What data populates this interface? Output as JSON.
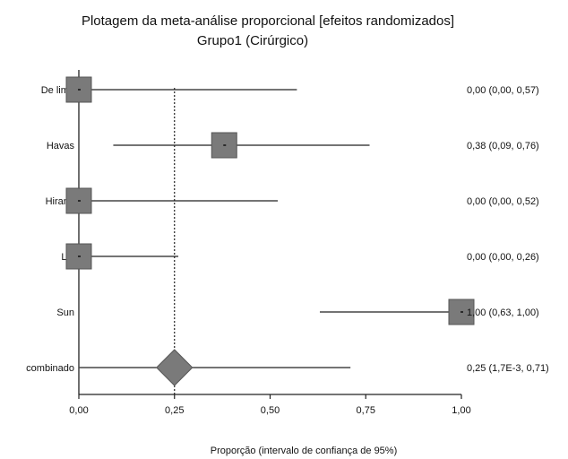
{
  "chart_data": {
    "type": "forest",
    "title": "Plotagem da meta-análise proporcional [efeitos randomizados]",
    "subtitle": "Grupo1 (Cirúrgico)",
    "xlabel": "Proporção (intervalo de confiança de 95%)",
    "xlim": [
      0,
      1
    ],
    "x_ticks": [
      0,
      0.25,
      0.5,
      0.75,
      1
    ],
    "x_tick_labels": [
      "0,00",
      "0,25",
      "0,50",
      "0,75",
      "1,00"
    ],
    "pooled_reference_line": 0.25,
    "studies": [
      {
        "name": "De lima",
        "estimate": 0.0,
        "ci_low": 0.0,
        "ci_high": 0.57,
        "label": "0,00 (0,00, 0,57)"
      },
      {
        "name": "Havas",
        "estimate": 0.38,
        "ci_low": 0.09,
        "ci_high": 0.76,
        "label": "0,38 (0,09, 0,76)"
      },
      {
        "name": "Hirano",
        "estimate": 0.0,
        "ci_low": 0.0,
        "ci_high": 0.52,
        "label": "0,00 (0,00, 0,52)"
      },
      {
        "name": "Lin",
        "estimate": 0.0,
        "ci_low": 0.0,
        "ci_high": 0.26,
        "label": "0,00 (0,00, 0,26)"
      },
      {
        "name": "Sun",
        "estimate": 1.0,
        "ci_low": 0.63,
        "ci_high": 1.0,
        "label": "1,00 (0,63, 1,00)"
      }
    ],
    "combined": {
      "name": "combinado",
      "estimate": 0.25,
      "ci_low": 0.0017,
      "ci_high": 0.71,
      "label": "0,25 (1,7E-3, 0,71)"
    },
    "colors": {
      "marker": "#7a7a7a",
      "marker_stroke": "#555555",
      "line": "#222222"
    }
  }
}
